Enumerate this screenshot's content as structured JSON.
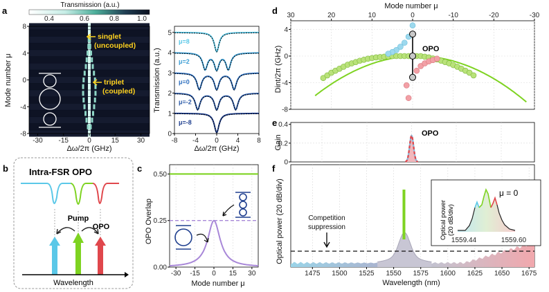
{
  "panels": {
    "a": {
      "label": "a",
      "colorbar_title": "Transmission (a.u.)",
      "colorbar_ticks": [
        "0.4",
        "0.6",
        "0.8",
        "1.0"
      ],
      "ylabel": "Mode number μ",
      "xlabel": "Δω/2π (GHz)",
      "annot_singlet": "singlet",
      "annot_singlet_sub": "(uncoupled)",
      "annot_triplet": "triplet",
      "annot_triplet_sub": "(coupled)"
    },
    "a2": {
      "ylabel": "Transmission (a.u.)",
      "xlabel": "Δω/2π (GHz)"
    },
    "b": {
      "label": "b",
      "title": "Intra-FSR OPO",
      "pump": "Pump",
      "opo": "OPO",
      "wavelength": "Wavelength"
    },
    "c": {
      "label": "c",
      "ylabel": "OPO Overlap",
      "xlabel": "Mode number μ"
    },
    "d": {
      "label": "d",
      "top_label": "Mode number μ",
      "ylabel": "Dint/2π (GHz)",
      "opo": "OPO"
    },
    "e": {
      "label": "e",
      "ylabel": "Gain",
      "opo": "OPO"
    },
    "f": {
      "label": "f",
      "ylabel": "Optical power (20 dB/div)",
      "xlabel": "Wavelength (nm)",
      "competition1": "Competition",
      "competition2": "suppression",
      "inset_ylabel1": "Optical power",
      "inset_ylabel2": "(20 dB/div)",
      "inset_mu": "μ = 0",
      "inset_ticks": [
        "1559.44",
        "1559.60"
      ]
    }
  },
  "colors": {
    "green": "#7ed321",
    "cyan": "#5bc8e8",
    "red": "#e0474c",
    "blue": "#1f3f8f",
    "purple": "#a887d8",
    "yellow": "#ffd21f"
  },
  "chart_data": [
    {
      "type": "heatmap",
      "id": "a-map",
      "x_ticks": [
        "-30",
        "-15",
        "0",
        "15",
        "30"
      ],
      "xlim": [
        -35,
        35
      ],
      "y_ticks": [
        "8",
        "4",
        "0",
        "-4",
        "-8"
      ],
      "ylim": [
        -8,
        8
      ],
      "colorbar_ticks": [
        "0.4",
        "0.6",
        "0.8",
        "1.0"
      ],
      "resonance_offsets_GHz": [
        {
          "mu": 8,
          "offset": 0
        },
        {
          "mu": 7,
          "offset": 0
        },
        {
          "mu": 6,
          "offset": 0.3
        },
        {
          "mu": 5,
          "offset": 0.5
        },
        {
          "mu": 4,
          "offset": 1
        },
        {
          "mu": 3,
          "offset": 1.5
        },
        {
          "mu": 2,
          "offset": 2
        },
        {
          "mu": 1,
          "offset": 2.7
        },
        {
          "mu": 0,
          "offset": 3.3
        },
        {
          "mu": -1,
          "offset": 3.6
        },
        {
          "mu": -2,
          "offset": 3.6
        },
        {
          "mu": -3,
          "offset": 3.3
        },
        {
          "mu": -4,
          "offset": 2.8
        },
        {
          "mu": -5,
          "offset": 2.2
        },
        {
          "mu": -6,
          "offset": 1.6
        },
        {
          "mu": -7,
          "offset": 0.8
        },
        {
          "mu": -8,
          "offset": 0
        }
      ]
    },
    {
      "type": "line",
      "id": "a-traces",
      "x_ticks": [
        "-8",
        "-4",
        "0",
        "4",
        "8"
      ],
      "xlim": [
        -8,
        8
      ],
      "y_ticks": [
        "0",
        "1",
        "2",
        "3",
        "4",
        "5"
      ],
      "ylim": [
        0,
        5.3
      ],
      "series": [
        {
          "name": "μ=8",
          "offset": 4,
          "dips": [
            0
          ]
        },
        {
          "name": "μ=2",
          "offset": 3,
          "dips": [
            -2.2,
            0,
            2.2
          ]
        },
        {
          "name": "μ=0",
          "offset": 2,
          "dips": [
            -3.3,
            0,
            3.3
          ]
        },
        {
          "name": "μ=-2",
          "offset": 1,
          "dips": [
            -3.6,
            0,
            3.6
          ]
        },
        {
          "name": "μ=-8",
          "offset": 0,
          "dips": [
            0
          ]
        }
      ]
    },
    {
      "type": "line",
      "id": "c",
      "x_ticks": [
        "-30",
        "-15",
        "0",
        "15",
        "30"
      ],
      "xlim": [
        -35,
        35
      ],
      "y_ticks": [
        "0.00",
        "0.25",
        "0.50"
      ],
      "ylim": [
        0,
        0.55
      ],
      "series": [
        {
          "type": "const",
          "value": 0.5
        },
        {
          "type": "dashed",
          "value": 0.25
        },
        {
          "type": "lorentzian",
          "peak": 0.25,
          "width": 6
        }
      ]
    },
    {
      "type": "scatter",
      "id": "d",
      "top_ticks": [
        "30",
        "20",
        "10",
        "0",
        "-10",
        "-20",
        "-30"
      ],
      "y_ticks": [
        "4",
        "0",
        "-4",
        "-8"
      ],
      "ylim": [
        -8,
        5.3
      ],
      "xlim": [
        30,
        -30
      ],
      "green_points": [
        {
          "mu": 22,
          "y": -3.3
        },
        {
          "mu": 21,
          "y": -2.9
        },
        {
          "mu": 20,
          "y": -2.5
        },
        {
          "mu": 19,
          "y": -2.2
        },
        {
          "mu": 18,
          "y": -1.9
        },
        {
          "mu": 17,
          "y": -1.6
        },
        {
          "mu": 16,
          "y": -1.3
        },
        {
          "mu": 15,
          "y": -1.1
        },
        {
          "mu": 14,
          "y": -0.9
        },
        {
          "mu": 13,
          "y": -0.7
        },
        {
          "mu": 12,
          "y": -0.55
        },
        {
          "mu": 11,
          "y": -0.4
        },
        {
          "mu": 10,
          "y": -0.3
        },
        {
          "mu": 9,
          "y": -0.2
        },
        {
          "mu": 8,
          "y": -0.15
        },
        {
          "mu": 7,
          "y": -0.1
        },
        {
          "mu": 6,
          "y": -0.05
        },
        {
          "mu": 5,
          "y": 0
        },
        {
          "mu": 4,
          "y": 0
        },
        {
          "mu": 3,
          "y": 0
        },
        {
          "mu": 2,
          "y": 0
        },
        {
          "mu": 1,
          "y": 0
        },
        {
          "mu": 0,
          "y": 0
        },
        {
          "mu": -1,
          "y": 0
        },
        {
          "mu": -2,
          "y": 0
        },
        {
          "mu": -3,
          "y": -0.1
        },
        {
          "mu": -4,
          "y": -0.2
        },
        {
          "mu": -5,
          "y": -0.35
        },
        {
          "mu": -6,
          "y": -0.5
        },
        {
          "mu": -7,
          "y": -0.7
        },
        {
          "mu": -8,
          "y": -0.9
        },
        {
          "mu": -9,
          "y": -1.1
        },
        {
          "mu": -10,
          "y": -1.35
        },
        {
          "mu": -11,
          "y": -1.6
        },
        {
          "mu": -12,
          "y": -1.9
        },
        {
          "mu": -13,
          "y": -2.2
        },
        {
          "mu": -14,
          "y": -2.5
        },
        {
          "mu": -15,
          "y": -2.9
        }
      ],
      "blue_points": [
        {
          "mu": 0,
          "y": 4.6
        },
        {
          "mu": 1,
          "y": 2.9
        },
        {
          "mu": 2,
          "y": 2.0
        },
        {
          "mu": 3,
          "y": 1.4
        },
        {
          "mu": 4,
          "y": 0.9
        },
        {
          "mu": 5,
          "y": 0.6
        },
        {
          "mu": 6,
          "y": 0.35
        }
      ],
      "red_points": [
        {
          "mu": 1,
          "y": -6.3
        },
        {
          "mu": 1.5,
          "y": -4.4
        },
        {
          "mu": -1,
          "y": -2.2
        },
        {
          "mu": -2,
          "y": -1.5
        },
        {
          "mu": -3,
          "y": -1.1
        },
        {
          "mu": -4,
          "y": -0.8
        },
        {
          "mu": -5,
          "y": -0.6
        },
        {
          "mu": -6,
          "y": -0.4
        }
      ],
      "opo_markers": [
        {
          "mu": 0,
          "y": 3.3
        },
        {
          "mu": 0,
          "y": 0
        },
        {
          "mu": 0,
          "y": -3.2
        }
      ]
    },
    {
      "type": "line",
      "id": "e",
      "y_ticks": [
        "0",
        "0.2",
        "0.4"
      ],
      "ylim": [
        0,
        0.42
      ],
      "peak": 0.28
    },
    {
      "type": "line",
      "id": "f",
      "x_ticks": [
        "1475",
        "1500",
        "1525",
        "1550",
        "1575",
        "1600",
        "1625",
        "1650",
        "1675"
      ],
      "xlim": [
        1455,
        1680
      ],
      "pump_nm": 1559.5,
      "noise_floor": "gradient",
      "threshold": "dashed"
    }
  ]
}
